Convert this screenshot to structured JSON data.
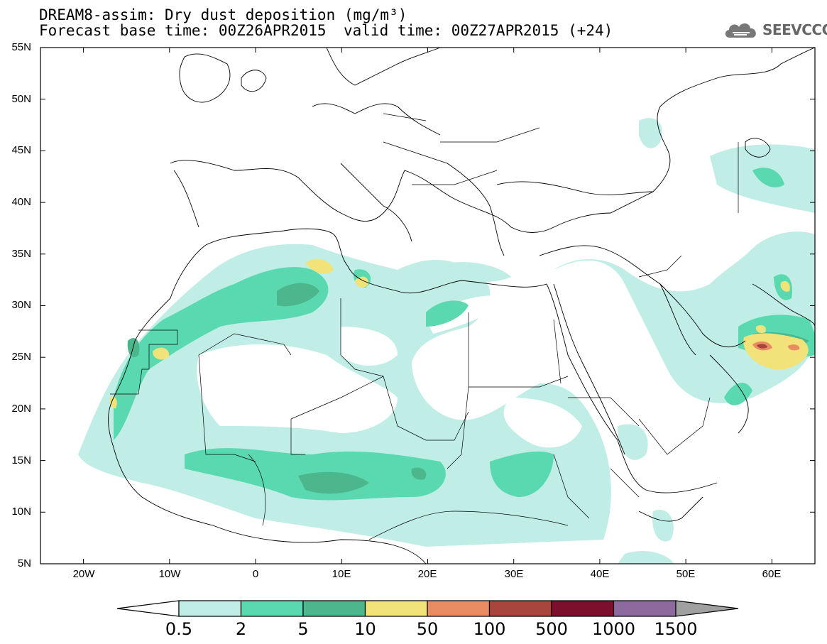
{
  "title_line1": "DREAM8-assim: Dry dust deposition (mg/m³)",
  "title_line2a": "Forecast base time: 00Z26APR2015",
  "title_line2b": "valid time: 00Z27APR2015 (+24)",
  "logo_text": "SEEVCCC",
  "logo_icon": "cloud-icon",
  "map": {
    "lon_range": [
      -25,
      65
    ],
    "lat_range": [
      5,
      55
    ],
    "lat_labels": [
      "55N",
      "50N",
      "45N",
      "40N",
      "35N",
      "30N",
      "25N",
      "20N",
      "15N",
      "10N",
      "5N"
    ],
    "lon_labels": [
      "20W",
      "10W",
      "0",
      "10E",
      "20E",
      "30E",
      "40E",
      "50E",
      "60E"
    ]
  },
  "colorbar": {
    "levels": [
      "0.5",
      "2",
      "5",
      "10",
      "50",
      "100",
      "500",
      "1000",
      "1500"
    ],
    "colors": [
      "#c0eee6",
      "#5ad9b0",
      "#4cb78c",
      "#f1e27a",
      "#e98c64",
      "#a8453c",
      "#7c0f2c",
      "#8d6a9d",
      "#a0a0a0"
    ]
  }
}
